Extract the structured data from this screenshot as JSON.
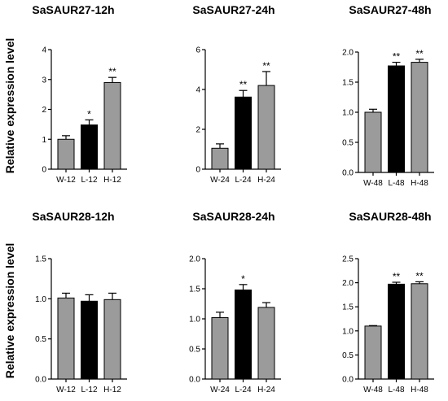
{
  "figure": {
    "ylabel_top": "Relative expression level",
    "ylabel_bottom": "Relative expression level"
  },
  "colors": {
    "gray": "#9b9b9b",
    "black": "#000000"
  },
  "chart_data": [
    {
      "type": "bar",
      "title": "SaSAUR27-12h",
      "ylabel": "Relative expression level",
      "categories": [
        "W-12",
        "L-12",
        "H-12"
      ],
      "values": [
        1.0,
        1.48,
        2.9
      ],
      "errors": [
        0.12,
        0.17,
        0.17
      ],
      "colors": [
        "gray",
        "black",
        "gray"
      ],
      "significance": [
        "",
        "*",
        "**"
      ],
      "ylim": [
        0,
        4
      ],
      "yticks": [
        "0",
        "1",
        "2",
        "3",
        "4"
      ]
    },
    {
      "type": "bar",
      "title": "SaSAUR27-24h",
      "ylabel": "",
      "categories": [
        "W-24",
        "L-24",
        "H-24"
      ],
      "values": [
        1.05,
        3.62,
        4.2
      ],
      "errors": [
        0.22,
        0.33,
        0.7
      ],
      "colors": [
        "gray",
        "black",
        "gray"
      ],
      "significance": [
        "",
        "**",
        "**"
      ],
      "ylim": [
        0,
        6
      ],
      "yticks": [
        "0",
        "2",
        "4",
        "6"
      ]
    },
    {
      "type": "bar",
      "title": "SaSAUR27-48h",
      "ylabel": "",
      "categories": [
        "W-48",
        "L-48",
        "H-48"
      ],
      "values": [
        1.0,
        1.77,
        1.83
      ],
      "errors": [
        0.05,
        0.06,
        0.05
      ],
      "colors": [
        "gray",
        "black",
        "gray"
      ],
      "significance": [
        "",
        "**",
        "**"
      ],
      "ylim": [
        0,
        2.0
      ],
      "yticks": [
        "0.0",
        "0.5",
        "1.0",
        "1.5",
        "2.0"
      ]
    },
    {
      "type": "bar",
      "title": "SaSAUR28-12h",
      "ylabel": "Relative expression level",
      "categories": [
        "W-12",
        "L-12",
        "H-12"
      ],
      "values": [
        1.01,
        0.97,
        0.99
      ],
      "errors": [
        0.06,
        0.08,
        0.08
      ],
      "colors": [
        "gray",
        "black",
        "gray"
      ],
      "significance": [
        "",
        "",
        ""
      ],
      "ylim": [
        0,
        1.5
      ],
      "yticks": [
        "0.0",
        "0.5",
        "1.0",
        "1.5"
      ]
    },
    {
      "type": "bar",
      "title": "SaSAUR28-24h",
      "ylabel": "",
      "categories": [
        "W-24",
        "L-24",
        "H-24"
      ],
      "values": [
        1.02,
        1.48,
        1.19
      ],
      "errors": [
        0.09,
        0.09,
        0.08
      ],
      "colors": [
        "gray",
        "black",
        "gray"
      ],
      "significance": [
        "",
        "*",
        ""
      ],
      "ylim": [
        0,
        2.0
      ],
      "yticks": [
        "0.0",
        "0.5",
        "1.0",
        "1.5",
        "2.0"
      ]
    },
    {
      "type": "bar",
      "title": "SaSAUR28-48h",
      "ylabel": "",
      "categories": [
        "W-48",
        "L-48",
        "H-48"
      ],
      "values": [
        1.1,
        1.97,
        1.98
      ],
      "errors": [
        0.01,
        0.04,
        0.04
      ],
      "colors": [
        "gray",
        "black",
        "gray"
      ],
      "significance": [
        "",
        "**",
        "**"
      ],
      "ylim": [
        0,
        2.5
      ],
      "yticks": [
        "0.0",
        "0.5",
        "1.0",
        "1.5",
        "2.0",
        "2.5"
      ]
    }
  ]
}
